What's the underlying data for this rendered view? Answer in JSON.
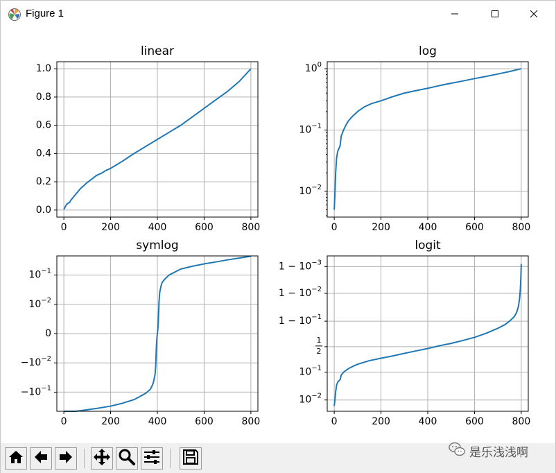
{
  "window": {
    "title": "Figure 1",
    "icons": {
      "app": "matplotlib-icon",
      "minimize": "minimize-icon",
      "maximize": "maximize-icon",
      "close": "close-icon"
    }
  },
  "toolbar": {
    "buttons": [
      {
        "name": "home-button",
        "icon": "home-icon"
      },
      {
        "name": "back-button",
        "icon": "arrow-left-icon"
      },
      {
        "name": "forward-button",
        "icon": "arrow-right-icon"
      },
      {
        "name": "pan-button",
        "icon": "move-icon"
      },
      {
        "name": "zoom-button",
        "icon": "magnifier-icon"
      },
      {
        "name": "configure-subplots-button",
        "icon": "sliders-icon"
      },
      {
        "name": "save-button",
        "icon": "floppy-disk-icon"
      }
    ]
  },
  "watermark": {
    "text": "是乐浅浅啊",
    "icon": "wechat-icon"
  },
  "colors": {
    "line": "#1f77b4",
    "grid": "#b0b0b0",
    "axes": "#000000"
  },
  "chart_data": [
    {
      "type": "line",
      "title": "linear",
      "yscale": "linear",
      "grid": true,
      "xlim": [
        -30,
        830
      ],
      "ylim": [
        -0.05,
        1.05
      ],
      "xticks": [
        0,
        200,
        400,
        600,
        800
      ],
      "xtick_labels": [
        "0",
        "200",
        "400",
        "600",
        "800"
      ],
      "yticks": [
        0.0,
        0.2,
        0.4,
        0.6,
        0.8,
        1.0
      ],
      "ytick_labels": [
        "0.0",
        "0.2",
        "0.4",
        "0.6",
        "0.8",
        "1.0"
      ],
      "series": [
        {
          "x": [
            0,
            5,
            10,
            15,
            20,
            25,
            30,
            40,
            50,
            60,
            70,
            80,
            90,
            100,
            120,
            140,
            160,
            180,
            200,
            250,
            300,
            350,
            400,
            450,
            500,
            550,
            600,
            650,
            700,
            750,
            800
          ],
          "y": [
            0.005,
            0.02,
            0.035,
            0.045,
            0.05,
            0.055,
            0.07,
            0.09,
            0.11,
            0.13,
            0.15,
            0.165,
            0.18,
            0.195,
            0.22,
            0.245,
            0.26,
            0.28,
            0.295,
            0.345,
            0.4,
            0.45,
            0.5,
            0.55,
            0.6,
            0.66,
            0.72,
            0.78,
            0.84,
            0.91,
            1.0
          ]
        }
      ]
    },
    {
      "type": "line",
      "title": "log",
      "yscale": "log",
      "grid": true,
      "xlim": [
        -30,
        830
      ],
      "ylim": [
        0.0038,
        1.3
      ],
      "xticks": [
        0,
        200,
        400,
        600,
        800
      ],
      "xtick_labels": [
        "0",
        "200",
        "400",
        "600",
        "800"
      ],
      "yticks": [
        0.01,
        0.1,
        1
      ],
      "ytick_labels": [
        "10^-2",
        "10^-1",
        "10^0"
      ],
      "series": [
        {
          "x": [
            0,
            3,
            6,
            10,
            15,
            20,
            25,
            30,
            40,
            50,
            60,
            80,
            100,
            130,
            160,
            200,
            250,
            300,
            350,
            400,
            450,
            500,
            550,
            600,
            650,
            700,
            750,
            800
          ],
          "y": [
            0.005,
            0.009,
            0.02,
            0.035,
            0.045,
            0.05,
            0.055,
            0.08,
            0.1,
            0.12,
            0.14,
            0.17,
            0.2,
            0.24,
            0.27,
            0.3,
            0.35,
            0.4,
            0.44,
            0.48,
            0.53,
            0.58,
            0.63,
            0.69,
            0.75,
            0.82,
            0.9,
            1.0
          ]
        }
      ]
    },
    {
      "type": "line",
      "title": "symlog",
      "yscale": "symlog",
      "linthresh": 0.01,
      "grid": true,
      "xlim": [
        -30,
        830
      ],
      "ylim": [
        -0.45,
        0.45
      ],
      "xticks": [
        0,
        200,
        400,
        600,
        800
      ],
      "xtick_labels": [
        "0",
        "200",
        "400",
        "600",
        "800"
      ],
      "yticks": [
        -0.1,
        -0.01,
        0,
        0.01,
        0.1
      ],
      "ytick_labels": [
        "-10^-1",
        "-10^-2",
        "0",
        "10^-2",
        "10^-1"
      ],
      "series": [
        {
          "x": [
            0,
            50,
            100,
            150,
            200,
            250,
            300,
            350,
            370,
            380,
            385,
            390,
            393,
            396,
            398,
            400,
            402,
            404,
            407,
            410,
            415,
            420,
            430,
            450,
            500,
            550,
            600,
            650,
            700,
            750,
            800
          ],
          "y": [
            -0.5,
            -0.45,
            -0.4,
            -0.35,
            -0.3,
            -0.24,
            -0.18,
            -0.11,
            -0.08,
            -0.055,
            -0.04,
            -0.025,
            -0.012,
            -0.004,
            -0.0015,
            0.0,
            0.0015,
            0.004,
            0.012,
            0.025,
            0.04,
            0.055,
            0.07,
            0.1,
            0.16,
            0.2,
            0.24,
            0.28,
            0.33,
            0.38,
            0.44
          ]
        }
      ]
    },
    {
      "type": "line",
      "title": "logit",
      "yscale": "logit",
      "grid": true,
      "xlim": [
        -30,
        830
      ],
      "ylim": [
        0.0038,
        0.9996
      ],
      "xticks": [
        0,
        200,
        400,
        600,
        800
      ],
      "xtick_labels": [
        "0",
        "200",
        "400",
        "600",
        "800"
      ],
      "yticks": [
        0.01,
        0.1,
        0.5,
        0.9,
        0.99,
        0.999
      ],
      "ytick_labels": [
        "10^-2",
        "10^-1",
        "1/2",
        "1-10^-1",
        "1-10^-2",
        "1-10^-3"
      ],
      "series": [
        {
          "x": [
            0,
            3,
            6,
            10,
            15,
            20,
            25,
            30,
            40,
            60,
            80,
            100,
            150,
            200,
            250,
            300,
            350,
            400,
            450,
            500,
            550,
            600,
            650,
            700,
            730,
            750,
            770,
            780,
            788,
            793,
            796,
            798,
            800
          ],
          "y": [
            0.006,
            0.01,
            0.02,
            0.035,
            0.045,
            0.05,
            0.055,
            0.08,
            0.1,
            0.13,
            0.155,
            0.18,
            0.23,
            0.27,
            0.31,
            0.36,
            0.41,
            0.46,
            0.52,
            0.57,
            0.63,
            0.69,
            0.76,
            0.83,
            0.87,
            0.9,
            0.93,
            0.95,
            0.97,
            0.985,
            0.993,
            0.997,
            0.9992
          ]
        }
      ]
    }
  ]
}
